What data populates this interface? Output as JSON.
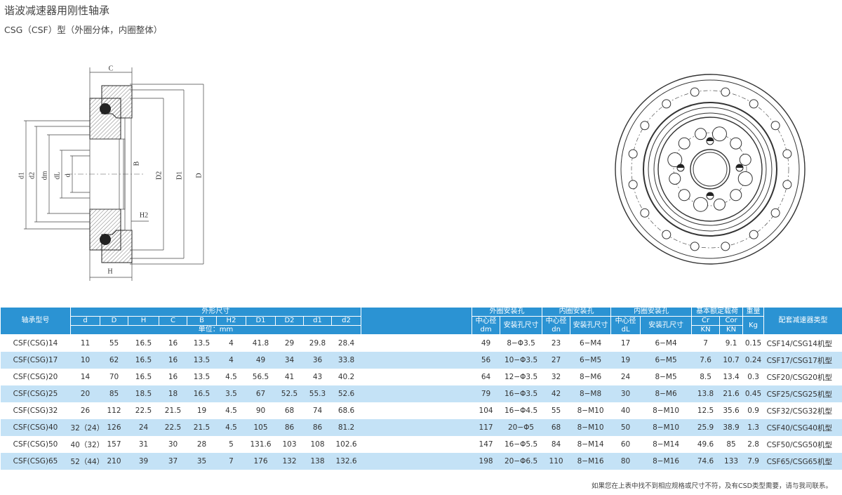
{
  "title": "谐波减速器用刚性轴承",
  "subtitle": "CSG（CSF）型（外圈分体，内圈整体）",
  "drawing": {
    "labels": [
      "C",
      "d1",
      "d2",
      "dm",
      "dL",
      "d",
      "B",
      "H2",
      "D2",
      "D1",
      "D",
      "H"
    ]
  },
  "table": {
    "header_top": [
      "轴承型号",
      "外形尺寸",
      "外圈安装孔",
      "内圈安装孔",
      "内圈安装孔",
      "基本额定载荷",
      "重量",
      "配套减速器类型"
    ],
    "dims": [
      "d",
      "D",
      "H",
      "C",
      "B",
      "H2",
      "D1",
      "D2",
      "d1",
      "d2"
    ],
    "unit": "单位：mm",
    "center_label": "中心径",
    "center_symbols": [
      "dm",
      "dn",
      "dL"
    ],
    "hole_label": "安装孔尺寸",
    "loads": [
      "Cr",
      "Cor"
    ],
    "load_units": [
      "KN",
      "KN"
    ],
    "weight_unit": "Kg",
    "rows": [
      [
        "CSF(CSG)14",
        11,
        55,
        16.5,
        16,
        13.5,
        4,
        41.8,
        29,
        29.8,
        28.4,
        49,
        "8−Φ3.5",
        23,
        "6−M4",
        17,
        "6−M4",
        7,
        9.1,
        0.15,
        "CSF14/CSG14机型"
      ],
      [
        "CSF(CSG)17",
        10,
        62,
        16.5,
        16,
        13.5,
        4,
        49,
        34,
        36,
        33.8,
        56,
        "10−Φ3.5",
        27,
        "6−M5",
        19,
        "6−M5",
        7.6,
        10.7,
        0.24,
        "CSF17/CSG17机型"
      ],
      [
        "CSF(CSG)20",
        14,
        70,
        16.5,
        16,
        13.5,
        4.5,
        56.5,
        41,
        43,
        40.2,
        64,
        "12−Φ3.5",
        32,
        "8−M6",
        24,
        "8−M5",
        8.5,
        13.4,
        0.3,
        "CSF20/CSG20机型"
      ],
      [
        "CSF(CSG)25",
        20,
        85,
        18.5,
        18,
        16.5,
        3.5,
        67,
        52.5,
        55.3,
        52.6,
        79,
        "16−Φ3.5",
        42,
        "8−M8",
        30,
        "8−M6",
        13.8,
        21.6,
        0.45,
        "CSF25/CSG25机型"
      ],
      [
        "CSF(CSG)32",
        26,
        112,
        22.5,
        21.5,
        19,
        4.5,
        90,
        68,
        74,
        68.6,
        104,
        "16−Φ4.5",
        55,
        "8−M10",
        40,
        "8−M10",
        12.5,
        35.6,
        0.9,
        "CSF32/CSG32机型"
      ],
      [
        "CSF(CSG)40",
        "32（24）",
        126,
        24,
        22.5,
        21.5,
        4.5,
        105,
        86,
        86,
        81.2,
        117,
        "20−Φ5",
        68,
        "8−M10",
        50,
        "8−M10",
        25.9,
        38.9,
        1.3,
        "CSF40/CSG40机型"
      ],
      [
        "CSF(CSG)50",
        "40（32）",
        157,
        31,
        30,
        28,
        5,
        131.6,
        103,
        108,
        102.6,
        147,
        "16−Φ5.5",
        84,
        "8−M14",
        60,
        "8−M14",
        49.6,
        85,
        2.8,
        "CSF50/CSG50机型"
      ],
      [
        "CSF(CSG)65",
        "52（44）",
        210,
        39,
        37,
        35,
        7,
        176,
        132,
        138,
        132.6,
        198,
        "20−Φ6.5",
        110,
        "8−M16",
        80,
        "8−M16",
        74.6,
        133,
        7.9,
        "CSF65/CSG65机型"
      ]
    ]
  },
  "note": "如果您在上表中找不到相应规格或尺寸不符，及有CSD类型需要，请与我司联系。"
}
